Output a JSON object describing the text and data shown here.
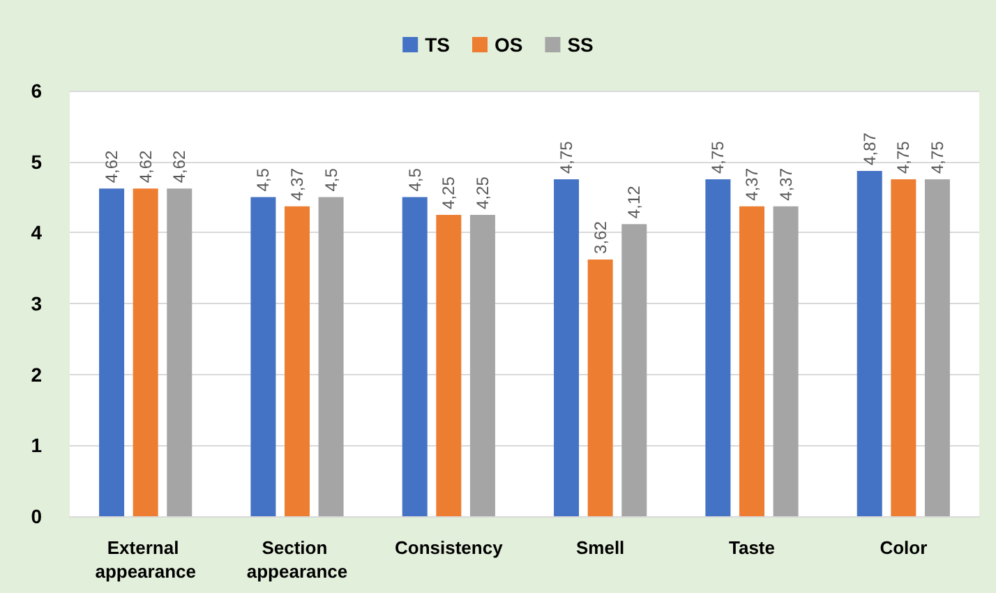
{
  "chart_data": {
    "type": "bar",
    "categories": [
      "External appearance",
      "Section appearance",
      "Consistency",
      "Smell",
      "Taste",
      "Color"
    ],
    "series": [
      {
        "name": "TS",
        "color": "#4472c4",
        "values": [
          4.62,
          4.5,
          4.5,
          4.75,
          4.75,
          4.87
        ],
        "value_labels": [
          "4,62",
          "4,5",
          "4,5",
          "4,75",
          "4,75",
          "4,87"
        ]
      },
      {
        "name": "OS",
        "color": "#ed7d31",
        "values": [
          4.62,
          4.37,
          4.25,
          3.62,
          4.37,
          4.75
        ],
        "value_labels": [
          "4,62",
          "4,37",
          "4,25",
          "3,62",
          "4,37",
          "4,75"
        ]
      },
      {
        "name": "SS",
        "color": "#a5a5a5",
        "values": [
          4.62,
          4.5,
          4.25,
          4.12,
          4.37,
          4.75
        ],
        "value_labels": [
          "4,62",
          "4,5",
          "4,25",
          "4,12",
          "4,37",
          "4,75"
        ]
      }
    ],
    "ylim": [
      0,
      6
    ],
    "yticks": [
      0,
      1,
      2,
      3,
      4,
      5,
      6
    ],
    "grid": "y",
    "legend": "top"
  }
}
